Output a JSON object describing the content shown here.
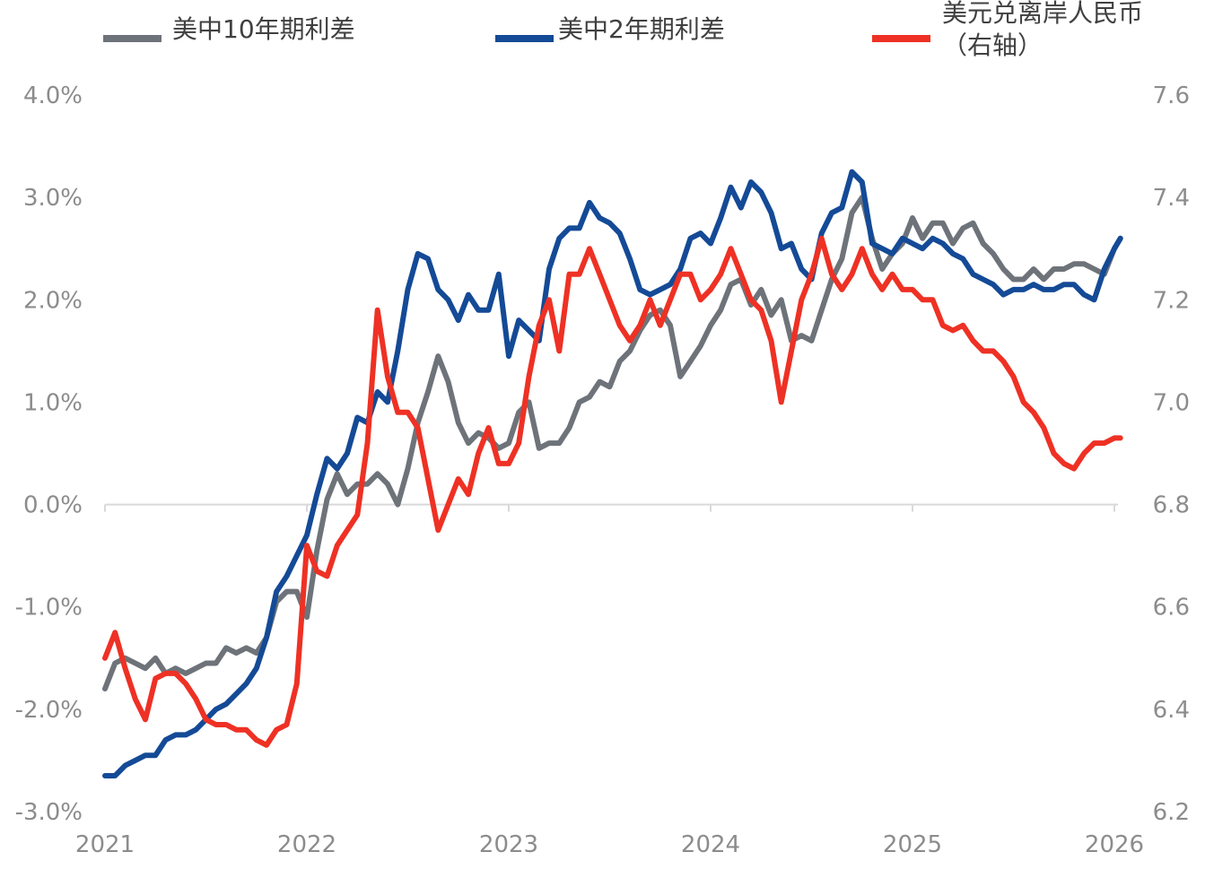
{
  "chart_data": {
    "type": "line",
    "title": "",
    "xlabel": "",
    "ylabel": "",
    "x_ticks": [
      "2021",
      "2022",
      "2023",
      "2024",
      "2025",
      "2026"
    ],
    "x_range": [
      2021.0,
      2026.0
    ],
    "y_left": {
      "ticks": [
        "4.0%",
        "3.0%",
        "2.0%",
        "1.0%",
        "0.0%",
        "-1.0%",
        "-2.0%",
        "-3.0%"
      ],
      "range": [
        -3.0,
        4.0
      ]
    },
    "y_right": {
      "ticks": [
        "7.6",
        "7.4",
        "7.2",
        "7.0",
        "6.8",
        "6.6",
        "6.4",
        "6.2"
      ],
      "range": [
        6.2,
        7.6
      ]
    },
    "legend": [
      {
        "label": "美中10年期利差",
        "color": "#6e737a"
      },
      {
        "label": "美中2年期利差",
        "color": "#144a96"
      },
      {
        "label_lines": [
          "美元兑离岸人民币",
          "（右轴）"
        ],
        "color": "#ee3124"
      }
    ],
    "legend_position": "top",
    "grid": false,
    "series": [
      {
        "name": "美中10年期利差",
        "axis": "left",
        "color": "#6e737a",
        "x": [
          2021.0,
          2021.05,
          2021.1,
          2021.15,
          2021.2,
          2021.25,
          2021.3,
          2021.35,
          2021.4,
          2021.45,
          2021.5,
          2021.55,
          2021.6,
          2021.65,
          2021.7,
          2021.75,
          2021.8,
          2021.85,
          2021.9,
          2021.95,
          2022.0,
          2022.05,
          2022.1,
          2022.15,
          2022.2,
          2022.25,
          2022.3,
          2022.35,
          2022.4,
          2022.45,
          2022.5,
          2022.55,
          2022.6,
          2022.65,
          2022.7,
          2022.75,
          2022.8,
          2022.85,
          2022.9,
          2022.95,
          2023.0,
          2023.05,
          2023.1,
          2023.15,
          2023.2,
          2023.25,
          2023.3,
          2023.35,
          2023.4,
          2023.45,
          2023.5,
          2023.55,
          2023.6,
          2023.65,
          2023.7,
          2023.75,
          2023.8,
          2023.85,
          2023.9,
          2023.95,
          2024.0,
          2024.05,
          2024.1,
          2024.15,
          2024.2,
          2024.25,
          2024.3,
          2024.35,
          2024.4,
          2024.45,
          2024.5,
          2024.55,
          2024.6,
          2024.65,
          2024.7,
          2024.75,
          2024.8,
          2024.85,
          2024.9,
          2024.95,
          2025.0,
          2025.05,
          2025.1,
          2025.15,
          2025.2,
          2025.25,
          2025.3,
          2025.35,
          2025.4,
          2025.45,
          2025.5,
          2025.55,
          2025.6,
          2025.65,
          2025.7,
          2025.75,
          2025.8,
          2025.85,
          2025.9,
          2025.95,
          2026.0,
          2026.03
        ],
        "values": [
          -1.8,
          -1.55,
          -1.5,
          -1.55,
          -1.6,
          -1.5,
          -1.65,
          -1.6,
          -1.65,
          -1.6,
          -1.55,
          -1.55,
          -1.4,
          -1.45,
          -1.4,
          -1.45,
          -1.3,
          -0.95,
          -0.85,
          -0.85,
          -1.1,
          -0.45,
          0.05,
          0.3,
          0.1,
          0.2,
          0.2,
          0.3,
          0.2,
          0.0,
          0.35,
          0.8,
          1.1,
          1.45,
          1.2,
          0.8,
          0.6,
          0.7,
          0.65,
          0.55,
          0.6,
          0.9,
          1.0,
          0.55,
          0.6,
          0.6,
          0.75,
          1.0,
          1.05,
          1.2,
          1.15,
          1.4,
          1.5,
          1.7,
          1.85,
          1.9,
          1.75,
          1.25,
          1.4,
          1.55,
          1.75,
          1.9,
          2.15,
          2.2,
          1.95,
          2.1,
          1.85,
          2.0,
          1.6,
          1.65,
          1.6,
          1.9,
          2.2,
          2.4,
          2.85,
          3.0,
          2.6,
          2.3,
          2.45,
          2.55,
          2.8,
          2.6,
          2.75,
          2.75,
          2.55,
          2.7,
          2.75,
          2.55,
          2.45,
          2.3,
          2.2,
          2.2,
          2.3,
          2.2,
          2.3,
          2.3,
          2.35,
          2.35,
          2.3,
          2.25,
          2.5,
          2.6
        ]
      },
      {
        "name": "美中2年期利差",
        "axis": "left",
        "color": "#144a96",
        "x": [
          2021.0,
          2021.05,
          2021.1,
          2021.15,
          2021.2,
          2021.25,
          2021.3,
          2021.35,
          2021.4,
          2021.45,
          2021.5,
          2021.55,
          2021.6,
          2021.65,
          2021.7,
          2021.75,
          2021.8,
          2021.85,
          2021.9,
          2021.95,
          2022.0,
          2022.05,
          2022.1,
          2022.15,
          2022.2,
          2022.25,
          2022.3,
          2022.35,
          2022.4,
          2022.45,
          2022.5,
          2022.55,
          2022.6,
          2022.65,
          2022.7,
          2022.75,
          2022.8,
          2022.85,
          2022.9,
          2022.95,
          2023.0,
          2023.05,
          2023.1,
          2023.15,
          2023.2,
          2023.25,
          2023.3,
          2023.35,
          2023.4,
          2023.45,
          2023.5,
          2023.55,
          2023.6,
          2023.65,
          2023.7,
          2023.75,
          2023.8,
          2023.85,
          2023.9,
          2023.95,
          2024.0,
          2024.05,
          2024.1,
          2024.15,
          2024.2,
          2024.25,
          2024.3,
          2024.35,
          2024.4,
          2024.45,
          2024.5,
          2024.55,
          2024.6,
          2024.65,
          2024.7,
          2024.75,
          2024.8,
          2024.85,
          2024.9,
          2024.95,
          2025.0,
          2025.05,
          2025.1,
          2025.15,
          2025.2,
          2025.25,
          2025.3,
          2025.35,
          2025.4,
          2025.45,
          2025.5,
          2025.55,
          2025.6,
          2025.65,
          2025.7,
          2025.75,
          2025.8,
          2025.85,
          2025.9,
          2025.95,
          2026.0,
          2026.03
        ],
        "values": [
          -2.65,
          -2.65,
          -2.55,
          -2.5,
          -2.45,
          -2.45,
          -2.3,
          -2.25,
          -2.25,
          -2.2,
          -2.1,
          -2.0,
          -1.95,
          -1.85,
          -1.75,
          -1.6,
          -1.3,
          -0.85,
          -0.7,
          -0.5,
          -0.3,
          0.1,
          0.45,
          0.35,
          0.5,
          0.85,
          0.8,
          1.1,
          1.0,
          1.5,
          2.1,
          2.45,
          2.4,
          2.1,
          2.0,
          1.8,
          2.05,
          1.9,
          1.9,
          2.25,
          1.45,
          1.8,
          1.7,
          1.6,
          2.3,
          2.6,
          2.7,
          2.7,
          2.95,
          2.8,
          2.75,
          2.65,
          2.4,
          2.1,
          2.05,
          2.1,
          2.15,
          2.3,
          2.6,
          2.65,
          2.55,
          2.8,
          3.1,
          2.9,
          3.15,
          3.05,
          2.85,
          2.5,
          2.55,
          2.3,
          2.2,
          2.65,
          2.85,
          2.9,
          3.25,
          3.15,
          2.55,
          2.5,
          2.45,
          2.6,
          2.55,
          2.5,
          2.6,
          2.55,
          2.45,
          2.4,
          2.25,
          2.2,
          2.15,
          2.05,
          2.1,
          2.1,
          2.15,
          2.1,
          2.1,
          2.15,
          2.15,
          2.05,
          2.0,
          2.3,
          2.5,
          2.6
        ]
      },
      {
        "name": "美元兑离岸人民币（右轴）",
        "axis": "right",
        "color": "#ee3124",
        "x": [
          2021.0,
          2021.05,
          2021.1,
          2021.15,
          2021.2,
          2021.25,
          2021.3,
          2021.35,
          2021.4,
          2021.45,
          2021.5,
          2021.55,
          2021.6,
          2021.65,
          2021.7,
          2021.75,
          2021.8,
          2021.85,
          2021.9,
          2021.95,
          2022.0,
          2022.05,
          2022.1,
          2022.15,
          2022.2,
          2022.25,
          2022.3,
          2022.35,
          2022.4,
          2022.45,
          2022.5,
          2022.55,
          2022.6,
          2022.65,
          2022.7,
          2022.75,
          2022.8,
          2022.85,
          2022.9,
          2022.95,
          2023.0,
          2023.05,
          2023.1,
          2023.15,
          2023.2,
          2023.25,
          2023.3,
          2023.35,
          2023.4,
          2023.45,
          2023.5,
          2023.55,
          2023.6,
          2023.65,
          2023.7,
          2023.75,
          2023.8,
          2023.85,
          2023.9,
          2023.95,
          2024.0,
          2024.05,
          2024.1,
          2024.15,
          2024.2,
          2024.25,
          2024.3,
          2024.35,
          2024.4,
          2024.45,
          2024.5,
          2024.55,
          2024.6,
          2024.65,
          2024.7,
          2024.75,
          2024.8,
          2024.85,
          2024.9,
          2024.95,
          2025.0,
          2025.05,
          2025.1,
          2025.15,
          2025.2,
          2025.25,
          2025.3,
          2025.35,
          2025.4,
          2025.45,
          2025.5,
          2025.55,
          2025.6,
          2025.65,
          2025.7,
          2025.75,
          2025.8,
          2025.85,
          2025.9,
          2025.95,
          2026.0,
          2026.03
        ],
        "values": [
          6.5,
          6.55,
          6.48,
          6.42,
          6.38,
          6.46,
          6.47,
          6.47,
          6.45,
          6.42,
          6.38,
          6.37,
          6.37,
          6.36,
          6.36,
          6.34,
          6.33,
          6.36,
          6.37,
          6.45,
          6.72,
          6.67,
          6.66,
          6.72,
          6.75,
          6.78,
          6.92,
          7.18,
          7.05,
          6.98,
          6.98,
          6.95,
          6.85,
          6.75,
          6.8,
          6.85,
          6.82,
          6.9,
          6.95,
          6.88,
          6.88,
          6.92,
          7.05,
          7.15,
          7.2,
          7.1,
          7.25,
          7.25,
          7.3,
          7.25,
          7.2,
          7.15,
          7.12,
          7.15,
          7.2,
          7.15,
          7.2,
          7.25,
          7.25,
          7.2,
          7.22,
          7.25,
          7.3,
          7.25,
          7.2,
          7.18,
          7.12,
          7.0,
          7.1,
          7.2,
          7.25,
          7.32,
          7.25,
          7.22,
          7.25,
          7.3,
          7.25,
          7.22,
          7.25,
          7.22,
          7.22,
          7.2,
          7.2,
          7.15,
          7.14,
          7.15,
          7.12,
          7.1,
          7.1,
          7.08,
          7.05,
          7.0,
          6.98,
          6.95,
          6.9,
          6.88,
          6.87,
          6.9,
          6.92,
          6.92,
          6.93,
          6.93
        ]
      }
    ]
  }
}
